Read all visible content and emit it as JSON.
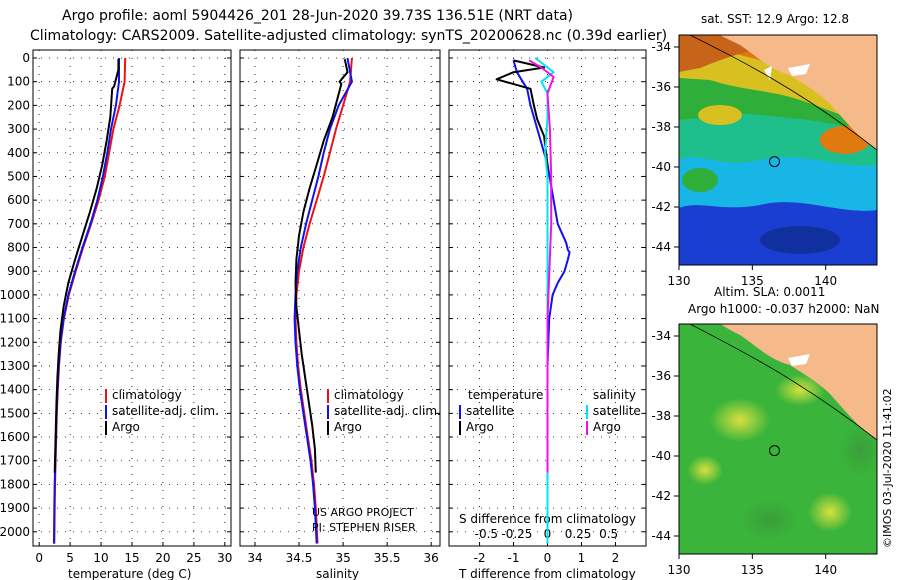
{
  "header": {
    "line1": "Argo profile: aoml 5904426_201 28-Jun-2020 39.73S 136.51E (NRT data)",
    "line2": "Climatology: CARS2009. Satellite-adjusted climatology: synTS_20200628.nc (0.39d earlier)"
  },
  "colors": {
    "climatology": "#ee1111",
    "satellite": "#1111ee",
    "argo": "#000000",
    "sat_salinity": "#00e5ee",
    "argo_salinity_diff": "#ee11ee",
    "land": "#f5b98a"
  },
  "depth_axis": {
    "ticks": [
      "0",
      "100",
      "200",
      "300",
      "400",
      "500",
      "600",
      "700",
      "800",
      "900",
      "1000",
      "1100",
      "1200",
      "1300",
      "1400",
      "1500",
      "1600",
      "1700",
      "1800",
      "1900",
      "2000"
    ],
    "ylim": [
      0,
      2060
    ]
  },
  "panels": {
    "temperature": {
      "xlabel": "temperature (deg C)",
      "xticks": [
        "0",
        "5",
        "10",
        "15",
        "20",
        "25",
        "30"
      ],
      "legend": [
        "climatology",
        "satellite-adj. clim.",
        "Argo"
      ]
    },
    "salinity": {
      "xlabel": "salinity",
      "xticks": [
        "34",
        "34.5",
        "35",
        "35.5",
        "36"
      ],
      "legend": [
        "climatology",
        "satellite-adj. clim.",
        "Argo"
      ],
      "credit1": "US ARGO PROJECT",
      "credit2": "PI: STEPHEN RISER"
    },
    "difference": {
      "xlabel": "T difference from climatology",
      "xticks": [
        "-2",
        "-1",
        "0",
        "1",
        "2"
      ],
      "top_label": "S difference from climatology",
      "top_ticks": [
        "-0.5",
        "-0.25",
        "0",
        "0.25",
        "0.5"
      ],
      "legend_temp_title": "temperature",
      "legend_sal_title": "salinity",
      "legend_satellite": "satellite",
      "legend_argo": "Argo"
    }
  },
  "maps": {
    "sst_title": "sat. SST: 12.9 Argo: 12.8",
    "sla_title1": "Altim. SLA: 0.0011",
    "sla_title2": "Argo h1000: -0.037 h2000: NaN",
    "lat_ticks": [
      "-34",
      "-36",
      "-38",
      "-40",
      "-42",
      "-44"
    ],
    "lon_ticks": [
      "130",
      "135",
      "140"
    ],
    "float_lon": 136.51,
    "float_lat": -39.73
  },
  "footer": {
    "imos": "©IMOS 03-Jul-2020 11:41:02"
  },
  "chart_data": [
    {
      "type": "line",
      "title": "",
      "xlabel": "temperature (deg C)",
      "ylabel": "",
      "xlim": [
        -1,
        31
      ],
      "ylim": [
        2060,
        0
      ],
      "series": [
        {
          "name": "climatology",
          "x": [
            13.9,
            13.8,
            13.0,
            12.0,
            11.3,
            10.6,
            9.6,
            8.4,
            7.1,
            5.9,
            4.8,
            4.0,
            3.5,
            3.2,
            3.0,
            2.85,
            2.75,
            2.65,
            2.55,
            2.5,
            2.45
          ],
          "y": [
            0,
            100,
            200,
            300,
            400,
            500,
            600,
            700,
            800,
            900,
            1000,
            1100,
            1200,
            1300,
            1400,
            1500,
            1600,
            1700,
            1800,
            1900,
            2050
          ]
        },
        {
          "name": "satellite-adj. clim.",
          "x": [
            12.9,
            12.9,
            12.4,
            11.6,
            11.0,
            10.3,
            9.4,
            8.3,
            7.0,
            5.8,
            4.7,
            3.95,
            3.45,
            3.15,
            2.95,
            2.8,
            2.7,
            2.6,
            2.5,
            2.45,
            2.4
          ],
          "y": [
            0,
            100,
            200,
            300,
            400,
            500,
            600,
            700,
            800,
            900,
            1000,
            1100,
            1200,
            1300,
            1400,
            1500,
            1600,
            1700,
            1800,
            1900,
            2050
          ]
        },
        {
          "name": "Argo",
          "x": [
            12.8,
            12.8,
            12.1,
            11.8,
            11.5,
            10.9,
            10.2,
            9.3,
            8.2,
            7.0,
            5.8,
            4.7,
            3.95,
            3.45,
            3.15,
            2.95,
            2.8,
            2.7,
            2.6,
            2.5
          ],
          "y": [
            5,
            50,
            120,
            130,
            250,
            350,
            450,
            550,
            650,
            750,
            850,
            950,
            1050,
            1150,
            1250,
            1350,
            1450,
            1550,
            1650,
            1750
          ]
        }
      ]
    },
    {
      "type": "line",
      "title": "",
      "xlabel": "salinity",
      "ylabel": "",
      "xlim": [
        33.83,
        36.1
      ],
      "ylim": [
        2060,
        0
      ],
      "series": [
        {
          "name": "climatology",
          "x": [
            35.1,
            35.08,
            35.0,
            34.92,
            34.85,
            34.78,
            34.7,
            34.62,
            34.55,
            34.5,
            34.47,
            34.46,
            34.47,
            34.49,
            34.52,
            34.56,
            34.6,
            34.64,
            34.67,
            34.69,
            34.71
          ],
          "y": [
            0,
            100,
            200,
            300,
            400,
            500,
            600,
            700,
            800,
            900,
            1000,
            1100,
            1200,
            1300,
            1400,
            1500,
            1600,
            1700,
            1800,
            1900,
            2050
          ]
        },
        {
          "name": "satellite-adj. clim.",
          "x": [
            35.05,
            35.1,
            34.95,
            34.85,
            34.78,
            34.72,
            34.65,
            34.58,
            34.52,
            34.48,
            34.46,
            34.45,
            34.46,
            34.48,
            34.51,
            34.55,
            34.59,
            34.63,
            34.66,
            34.68,
            34.7
          ],
          "y": [
            0,
            100,
            200,
            300,
            400,
            500,
            600,
            700,
            800,
            900,
            1000,
            1100,
            1200,
            1300,
            1400,
            1500,
            1600,
            1700,
            1800,
            1900,
            2050
          ]
        },
        {
          "name": "Argo",
          "x": [
            35.02,
            35.05,
            34.96,
            34.98,
            34.88,
            34.78,
            34.7,
            34.62,
            34.55,
            34.5,
            34.47,
            34.46,
            34.47,
            34.5,
            34.53,
            34.57,
            34.61,
            34.65,
            34.68,
            34.69
          ],
          "y": [
            5,
            60,
            100,
            110,
            250,
            350,
            450,
            550,
            650,
            750,
            850,
            950,
            1050,
            1150,
            1250,
            1350,
            1450,
            1550,
            1650,
            1750
          ]
        }
      ]
    },
    {
      "type": "line",
      "title": "",
      "xlabel": "T difference from climatology",
      "ylabel": "",
      "xlim": [
        -2.9,
        2.9
      ],
      "ylim": [
        2060,
        0
      ],
      "series": [
        {
          "name": "temperature satellite",
          "x": [
            -1.0,
            -0.9,
            -0.6,
            -0.5,
            -0.3,
            0.0,
            0.3,
            0.55,
            0.6,
            0.65,
            0.6,
            0.5,
            0.3,
            0.15,
            0.05,
            0.0,
            0.0,
            0.0,
            0.0
          ],
          "y": [
            10,
            60,
            130,
            200,
            300,
            450,
            700,
            780,
            810,
            820,
            850,
            900,
            950,
            1000,
            1100,
            1300,
            1600,
            1800,
            1900
          ]
        },
        {
          "name": "temperature Argo",
          "x": [
            -1.0,
            -0.1,
            -1.0,
            -1.5,
            -0.5,
            -0.4,
            -0.3,
            -0.1,
            0.0,
            0.0
          ],
          "y": [
            10,
            40,
            60,
            90,
            130,
            200,
            260,
            330,
            450,
            1900
          ]
        },
        {
          "name": "salinity satellite",
          "x": [
            -0.1,
            0.05,
            -0.05,
            0.0,
            0.0,
            -0.02,
            0.0,
            0.0,
            0.0,
            0.0,
            0.0
          ],
          "y": [
            0,
            60,
            100,
            150,
            250,
            400,
            500,
            700,
            1100,
            1600,
            2050
          ]
        },
        {
          "name": "salinity Argo",
          "x": [
            -0.15,
            -0.05,
            0.05,
            0.0,
            0.02,
            0.03,
            0.03,
            0.0,
            0.0,
            0.0
          ],
          "y": [
            10,
            40,
            80,
            150,
            300,
            500,
            700,
            1100,
            1500,
            1750
          ]
        }
      ]
    }
  ]
}
